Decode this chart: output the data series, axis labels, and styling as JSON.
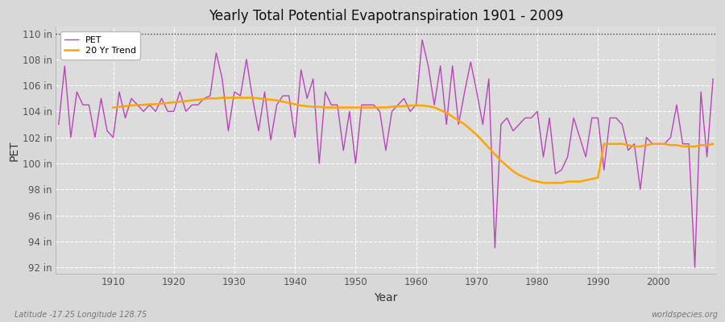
{
  "title": "Yearly Total Potential Evapotranspiration 1901 - 2009",
  "xlabel": "Year",
  "ylabel": "PET",
  "footer_left": "Latitude -17.25 Longitude 128.75",
  "footer_right": "worldspecies.org",
  "ylim": [
    91.5,
    110.5
  ],
  "xlim": [
    1900.5,
    2009.5
  ],
  "yticks": [
    92,
    94,
    96,
    98,
    100,
    102,
    104,
    106,
    108,
    110
  ],
  "xticks": [
    1910,
    1920,
    1930,
    1940,
    1950,
    1960,
    1970,
    1980,
    1990,
    2000
  ],
  "pet_color": "#BB44BB",
  "trend_color": "#FFA500",
  "fig_bg_color": "#D8D8D8",
  "plot_bg_color": "#DCDCDC",
  "grid_color": "#FFFFFF",
  "top_dotted_color": "#444444",
  "years": [
    1901,
    1902,
    1903,
    1904,
    1905,
    1906,
    1907,
    1908,
    1909,
    1910,
    1911,
    1912,
    1913,
    1914,
    1915,
    1916,
    1917,
    1918,
    1919,
    1920,
    1921,
    1922,
    1923,
    1924,
    1925,
    1926,
    1927,
    1928,
    1929,
    1930,
    1931,
    1932,
    1933,
    1934,
    1935,
    1936,
    1937,
    1938,
    1939,
    1940,
    1941,
    1942,
    1943,
    1944,
    1945,
    1946,
    1947,
    1948,
    1949,
    1950,
    1951,
    1952,
    1953,
    1954,
    1955,
    1956,
    1957,
    1958,
    1959,
    1960,
    1961,
    1962,
    1963,
    1964,
    1965,
    1966,
    1967,
    1968,
    1969,
    1970,
    1971,
    1972,
    1973,
    1974,
    1975,
    1976,
    1977,
    1978,
    1979,
    1980,
    1981,
    1982,
    1983,
    1984,
    1985,
    1986,
    1987,
    1988,
    1989,
    1990,
    1991,
    1992,
    1993,
    1994,
    1995,
    1996,
    1997,
    1998,
    1999,
    2000,
    2001,
    2002,
    2003,
    2004,
    2005,
    2006,
    2007,
    2008,
    2009
  ],
  "pet_values": [
    103.0,
    107.5,
    102.0,
    105.5,
    104.5,
    104.5,
    102.0,
    105.0,
    102.5,
    102.0,
    105.5,
    103.5,
    105.0,
    104.5,
    104.0,
    104.5,
    104.0,
    105.0,
    104.0,
    104.0,
    105.5,
    104.0,
    104.5,
    104.5,
    105.0,
    105.2,
    108.5,
    106.5,
    102.5,
    105.5,
    105.2,
    108.0,
    105.0,
    102.5,
    105.5,
    101.8,
    104.5,
    105.2,
    105.2,
    102.0,
    107.2,
    105.0,
    106.5,
    100.0,
    105.5,
    104.5,
    104.5,
    101.0,
    104.0,
    100.0,
    104.5,
    104.5,
    104.5,
    104.0,
    101.0,
    104.0,
    104.5,
    105.0,
    104.0,
    104.5,
    109.5,
    107.5,
    104.5,
    107.5,
    103.0,
    107.5,
    103.0,
    105.5,
    107.8,
    105.5,
    103.0,
    106.5,
    93.5,
    103.0,
    103.5,
    102.5,
    103.0,
    103.5,
    103.5,
    104.0,
    100.5,
    103.5,
    99.2,
    99.5,
    100.5,
    103.5,
    102.0,
    100.5,
    103.5,
    103.5,
    99.5,
    103.5,
    103.5,
    103.0,
    101.0,
    101.5,
    98.0,
    102.0,
    101.5,
    101.5,
    101.5,
    102.0,
    104.5,
    101.5,
    101.5,
    92.0,
    105.5,
    100.5,
    106.5
  ],
  "trend_values": [
    null,
    null,
    null,
    null,
    null,
    null,
    null,
    null,
    null,
    104.3,
    104.35,
    104.4,
    104.45,
    104.5,
    104.5,
    104.55,
    104.55,
    104.6,
    104.65,
    104.7,
    104.75,
    104.8,
    104.85,
    104.9,
    104.95,
    105.0,
    105.0,
    105.05,
    105.05,
    105.05,
    105.05,
    105.05,
    105.05,
    105.0,
    104.95,
    104.9,
    104.85,
    104.75,
    104.65,
    104.55,
    104.45,
    104.4,
    104.35,
    104.35,
    104.3,
    104.3,
    104.3,
    104.3,
    104.3,
    104.3,
    104.3,
    104.3,
    104.3,
    104.3,
    104.3,
    104.35,
    104.4,
    104.4,
    104.45,
    104.45,
    104.45,
    104.4,
    104.3,
    104.1,
    103.9,
    103.6,
    103.3,
    103.0,
    102.6,
    102.2,
    101.7,
    101.2,
    100.7,
    100.2,
    99.8,
    99.4,
    99.1,
    98.9,
    98.7,
    98.6,
    98.5,
    98.5,
    98.5,
    98.5,
    98.6,
    98.6,
    98.6,
    98.7,
    98.8,
    98.9,
    101.5,
    101.5,
    101.5,
    101.5,
    101.4,
    101.3,
    101.3,
    101.4,
    101.5,
    101.5,
    101.5,
    101.4,
    101.4,
    101.3,
    101.3,
    101.3,
    101.4,
    101.4,
    101.5
  ]
}
